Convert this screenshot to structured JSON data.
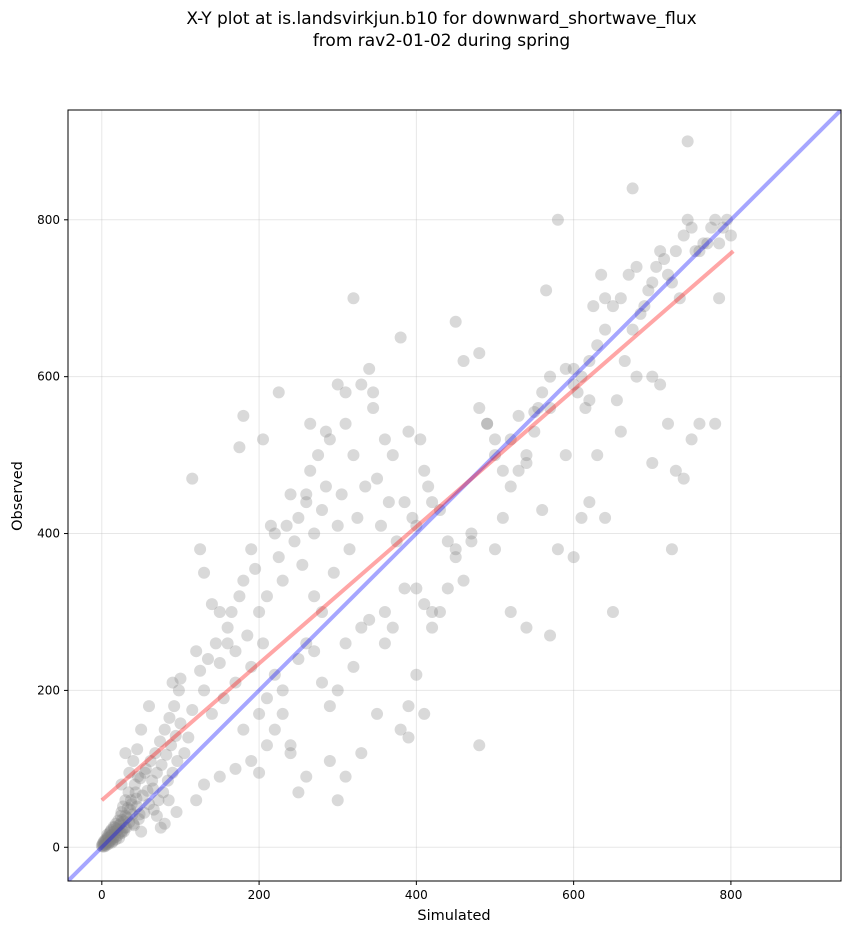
{
  "title_line1": "X-Y plot at is.landsvirkjun.b10 for downward_shortwave_flux",
  "title_line2": "from rav2-01-02 during spring",
  "chart_data": {
    "type": "scatter",
    "title": "X-Y plot at is.landsvirkjun.b10 for downward_shortwave_flux from rav2-01-02 during spring",
    "xlabel": "Simulated",
    "ylabel": "Observed",
    "xlim": [
      -43,
      940
    ],
    "ylim": [
      -43,
      940
    ],
    "xticks": [
      0,
      200,
      400,
      600,
      800
    ],
    "yticks": [
      0,
      200,
      400,
      600,
      800
    ],
    "grid": true,
    "point_color": "#808080",
    "point_alpha": 0.3,
    "lines": [
      {
        "kind": "one-to-one",
        "color": "#0000ff",
        "alpha": 0.35,
        "x": [
          -43,
          940
        ],
        "y": [
          -43,
          940
        ]
      },
      {
        "kind": "regression-fit",
        "color": "#ff0000",
        "alpha": 0.35,
        "x": [
          0,
          803
        ],
        "y": [
          60,
          760
        ]
      }
    ],
    "points": [
      [
        0,
        2
      ],
      [
        1,
        4
      ],
      [
        2,
        6
      ],
      [
        3,
        8
      ],
      [
        4,
        3
      ],
      [
        5,
        10
      ],
      [
        6,
        5
      ],
      [
        7,
        12
      ],
      [
        8,
        14
      ],
      [
        9,
        7
      ],
      [
        10,
        18
      ],
      [
        11,
        9
      ],
      [
        12,
        22
      ],
      [
        13,
        16
      ],
      [
        14,
        11
      ],
      [
        15,
        26
      ],
      [
        16,
        20
      ],
      [
        17,
        13
      ],
      [
        18,
        30
      ],
      [
        19,
        24
      ],
      [
        20,
        15
      ],
      [
        21,
        34
      ],
      [
        22,
        28
      ],
      [
        23,
        19
      ],
      [
        24,
        40
      ],
      [
        25,
        45
      ],
      [
        26,
        21
      ],
      [
        27,
        52
      ],
      [
        28,
        33
      ],
      [
        29,
        25
      ],
      [
        30,
        60
      ],
      [
        32,
        38
      ],
      [
        34,
        70
      ],
      [
        36,
        48
      ],
      [
        38,
        55
      ],
      [
        40,
        30
      ],
      [
        42,
        80
      ],
      [
        44,
        62
      ],
      [
        46,
        90
      ],
      [
        48,
        42
      ],
      [
        2,
        3
      ],
      [
        3,
        1
      ],
      [
        4,
        7
      ],
      [
        5,
        2
      ],
      [
        6,
        9
      ],
      [
        1,
        1
      ],
      [
        8,
        4
      ],
      [
        9,
        12
      ],
      [
        7,
        16
      ],
      [
        10,
        6
      ],
      [
        12,
        15
      ],
      [
        14,
        8
      ],
      [
        11,
        20
      ],
      [
        13,
        6
      ],
      [
        15,
        14
      ],
      [
        16,
        25
      ],
      [
        18,
        10
      ],
      [
        20,
        22
      ],
      [
        22,
        12
      ],
      [
        24,
        30
      ],
      [
        25,
        18
      ],
      [
        26,
        35
      ],
      [
        28,
        20
      ],
      [
        30,
        40
      ],
      [
        31,
        25
      ],
      [
        33,
        50
      ],
      [
        35,
        32
      ],
      [
        37,
        60
      ],
      [
        39,
        42
      ],
      [
        41,
        28
      ],
      [
        43,
        70
      ],
      [
        45,
        52
      ],
      [
        47,
        36
      ],
      [
        49,
        88
      ],
      [
        50,
        20
      ],
      [
        52,
        66
      ],
      [
        54,
        44
      ],
      [
        56,
        100
      ],
      [
        58,
        72
      ],
      [
        60,
        55
      ],
      [
        62,
        110
      ],
      [
        64,
        85
      ],
      [
        66,
        48
      ],
      [
        68,
        120
      ],
      [
        70,
        95
      ],
      [
        72,
        60
      ],
      [
        74,
        135
      ],
      [
        76,
        105
      ],
      [
        78,
        70
      ],
      [
        80,
        150
      ],
      [
        82,
        118
      ],
      [
        84,
        85
      ],
      [
        86,
        165
      ],
      [
        88,
        130
      ],
      [
        90,
        95
      ],
      [
        92,
        180
      ],
      [
        94,
        142
      ],
      [
        96,
        110
      ],
      [
        98,
        200
      ],
      [
        100,
        158
      ],
      [
        30,
        120
      ],
      [
        50,
        150
      ],
      [
        60,
        180
      ],
      [
        40,
        110
      ],
      [
        55,
        95
      ],
      [
        70,
        40
      ],
      [
        80,
        30
      ],
      [
        75,
        25
      ],
      [
        65,
        75
      ],
      [
        85,
        60
      ],
      [
        95,
        45
      ],
      [
        35,
        95
      ],
      [
        45,
        125
      ],
      [
        25,
        80
      ],
      [
        90,
        210
      ],
      [
        100,
        215
      ],
      [
        105,
        120
      ],
      [
        110,
        140
      ],
      [
        115,
        175
      ],
      [
        120,
        250
      ],
      [
        125,
        225
      ],
      [
        130,
        200
      ],
      [
        135,
        240
      ],
      [
        140,
        170
      ],
      [
        145,
        260
      ],
      [
        150,
        235
      ],
      [
        155,
        190
      ],
      [
        160,
        280
      ],
      [
        165,
        300
      ],
      [
        170,
        250
      ],
      [
        175,
        320
      ],
      [
        180,
        340
      ],
      [
        185,
        270
      ],
      [
        190,
        380
      ],
      [
        195,
        355
      ],
      [
        200,
        300
      ],
      [
        205,
        260
      ],
      [
        210,
        320
      ],
      [
        215,
        410
      ],
      [
        220,
        400
      ],
      [
        225,
        370
      ],
      [
        230,
        340
      ],
      [
        235,
        410
      ],
      [
        240,
        450
      ],
      [
        245,
        390
      ],
      [
        250,
        420
      ],
      [
        255,
        360
      ],
      [
        260,
        440
      ],
      [
        265,
        480
      ],
      [
        270,
        400
      ],
      [
        275,
        500
      ],
      [
        280,
        430
      ],
      [
        285,
        460
      ],
      [
        290,
        520
      ],
      [
        295,
        350
      ],
      [
        300,
        410
      ],
      [
        305,
        450
      ],
      [
        310,
        540
      ],
      [
        315,
        380
      ],
      [
        320,
        500
      ],
      [
        325,
        420
      ],
      [
        330,
        590
      ],
      [
        335,
        460
      ],
      [
        340,
        610
      ],
      [
        345,
        560
      ],
      [
        350,
        470
      ],
      [
        355,
        410
      ],
      [
        360,
        520
      ],
      [
        365,
        440
      ],
      [
        370,
        500
      ],
      [
        380,
        650
      ],
      [
        385,
        330
      ],
      [
        390,
        530
      ],
      [
        395,
        420
      ],
      [
        400,
        410
      ],
      [
        405,
        520
      ],
      [
        410,
        480
      ],
      [
        415,
        460
      ],
      [
        420,
        440
      ],
      [
        430,
        300
      ],
      [
        440,
        390
      ],
      [
        450,
        670
      ],
      [
        460,
        620
      ],
      [
        470,
        400
      ],
      [
        480,
        560
      ],
      [
        490,
        540
      ],
      [
        500,
        520
      ],
      [
        510,
        420
      ],
      [
        520,
        460
      ],
      [
        530,
        480
      ],
      [
        540,
        500
      ],
      [
        550,
        555
      ],
      [
        560,
        580
      ],
      [
        570,
        560
      ],
      [
        580,
        800
      ],
      [
        590,
        610
      ],
      [
        600,
        590
      ],
      [
        610,
        600
      ],
      [
        620,
        620
      ],
      [
        630,
        640
      ],
      [
        640,
        660
      ],
      [
        650,
        690
      ],
      [
        660,
        700
      ],
      [
        670,
        730
      ],
      [
        680,
        740
      ],
      [
        690,
        690
      ],
      [
        700,
        720
      ],
      [
        710,
        760
      ],
      [
        720,
        730
      ],
      [
        730,
        760
      ],
      [
        740,
        780
      ],
      [
        750,
        790
      ],
      [
        760,
        760
      ],
      [
        770,
        770
      ],
      [
        780,
        800
      ],
      [
        790,
        790
      ],
      [
        800,
        780
      ],
      [
        745,
        900
      ],
      [
        675,
        840
      ],
      [
        745,
        800
      ],
      [
        120,
        60
      ],
      [
        130,
        80
      ],
      [
        150,
        90
      ],
      [
        170,
        100
      ],
      [
        190,
        110
      ],
      [
        200,
        95
      ],
      [
        210,
        130
      ],
      [
        220,
        150
      ],
      [
        230,
        170
      ],
      [
        240,
        120
      ],
      [
        250,
        240
      ],
      [
        260,
        260
      ],
      [
        270,
        250
      ],
      [
        280,
        210
      ],
      [
        290,
        180
      ],
      [
        300,
        200
      ],
      [
        310,
        260
      ],
      [
        320,
        230
      ],
      [
        330,
        280
      ],
      [
        340,
        290
      ],
      [
        350,
        170
      ],
      [
        360,
        300
      ],
      [
        370,
        280
      ],
      [
        380,
        150
      ],
      [
        390,
        180
      ],
      [
        400,
        330
      ],
      [
        410,
        310
      ],
      [
        420,
        300
      ],
      [
        440,
        330
      ],
      [
        450,
        370
      ],
      [
        460,
        340
      ],
      [
        480,
        130
      ],
      [
        500,
        380
      ],
      [
        520,
        300
      ],
      [
        540,
        280
      ],
      [
        560,
        430
      ],
      [
        570,
        270
      ],
      [
        580,
        380
      ],
      [
        600,
        370
      ],
      [
        610,
        420
      ],
      [
        620,
        440
      ],
      [
        630,
        500
      ],
      [
        640,
        420
      ],
      [
        650,
        300
      ],
      [
        660,
        530
      ],
      [
        680,
        600
      ],
      [
        700,
        490
      ],
      [
        710,
        590
      ],
      [
        720,
        540
      ],
      [
        725,
        380
      ],
      [
        730,
        480
      ],
      [
        740,
        470
      ],
      [
        750,
        520
      ],
      [
        760,
        540
      ],
      [
        780,
        540
      ],
      [
        785,
        700
      ],
      [
        700,
        600
      ],
      [
        640,
        700
      ],
      [
        620,
        570
      ],
      [
        600,
        610
      ],
      [
        420,
        280
      ],
      [
        410,
        170
      ],
      [
        400,
        220
      ],
      [
        390,
        140
      ],
      [
        360,
        260
      ],
      [
        330,
        120
      ],
      [
        310,
        90
      ],
      [
        300,
        60
      ],
      [
        290,
        110
      ],
      [
        280,
        300
      ],
      [
        270,
        320
      ],
      [
        260,
        90
      ],
      [
        250,
        70
      ],
      [
        240,
        130
      ],
      [
        230,
        200
      ],
      [
        220,
        220
      ],
      [
        210,
        190
      ],
      [
        200,
        170
      ],
      [
        190,
        230
      ],
      [
        180,
        150
      ],
      [
        170,
        210
      ],
      [
        160,
        260
      ],
      [
        150,
        300
      ],
      [
        140,
        310
      ],
      [
        130,
        350
      ],
      [
        125,
        380
      ],
      [
        115,
        470
      ],
      [
        180,
        550
      ],
      [
        175,
        510
      ],
      [
        205,
        520
      ],
      [
        225,
        580
      ],
      [
        260,
        450
      ],
      [
        265,
        540
      ],
      [
        285,
        530
      ],
      [
        300,
        590
      ],
      [
        310,
        580
      ],
      [
        320,
        700
      ],
      [
        345,
        580
      ],
      [
        375,
        390
      ],
      [
        385,
        440
      ],
      [
        430,
        430
      ],
      [
        450,
        380
      ],
      [
        470,
        390
      ],
      [
        480,
        630
      ],
      [
        490,
        540
      ],
      [
        500,
        500
      ],
      [
        510,
        480
      ],
      [
        520,
        520
      ],
      [
        530,
        550
      ],
      [
        540,
        490
      ],
      [
        550,
        530
      ],
      [
        555,
        560
      ],
      [
        565,
        710
      ],
      [
        570,
        600
      ],
      [
        590,
        500
      ],
      [
        605,
        580
      ],
      [
        615,
        560
      ],
      [
        625,
        690
      ],
      [
        635,
        730
      ],
      [
        655,
        570
      ],
      [
        665,
        620
      ],
      [
        675,
        660
      ],
      [
        685,
        680
      ],
      [
        695,
        710
      ],
      [
        705,
        740
      ],
      [
        715,
        750
      ],
      [
        725,
        720
      ],
      [
        735,
        700
      ],
      [
        755,
        760
      ],
      [
        765,
        770
      ],
      [
        775,
        790
      ],
      [
        785,
        770
      ],
      [
        795,
        800
      ]
    ]
  }
}
